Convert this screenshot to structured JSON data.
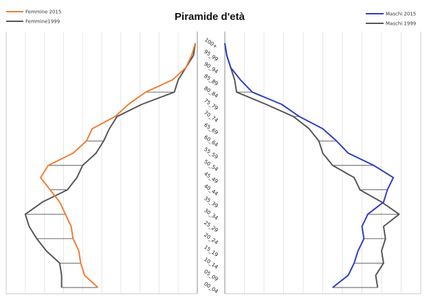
{
  "chart_data": {
    "type": "line",
    "title": "Piramide d'età",
    "age_groups": [
      "00_04",
      "05_09",
      "10_14",
      "15_19",
      "20_24",
      "25_29",
      "30_34",
      "35_39",
      "40_44",
      "45_49",
      "50_54",
      "55_59",
      "60_64",
      "65_69",
      "70_74",
      "75_79",
      "80_84",
      "85_89",
      "90_94",
      "95_99",
      "100+"
    ],
    "x_range": [
      0,
      10
    ],
    "gridlines": true,
    "panels": [
      {
        "side": "left",
        "name": "Femmine",
        "series": [
          {
            "name": "Femmine 2015",
            "color": "#f07d32",
            "values": [
              5.2,
              5.9,
              6.1,
              6.2,
              6.5,
              6.6,
              6.9,
              7.2,
              7.7,
              8.2,
              7.8,
              6.5,
              5.8,
              5.5,
              4.3,
              3.6,
              2.7,
              1.3,
              0.6,
              0.3,
              0.1
            ]
          },
          {
            "name": "Femmine1999",
            "color": "#555555",
            "values": [
              7.1,
              7.1,
              7.2,
              7.9,
              8.4,
              8.8,
              9.0,
              8.1,
              6.8,
              6.3,
              6.0,
              5.3,
              4.9,
              4.6,
              4.2,
              2.9,
              1.2,
              1.0,
              0.6,
              0.2,
              0.1
            ]
          }
        ]
      },
      {
        "side": "right",
        "name": "Maschi",
        "series": [
          {
            "name": "Maschi 2015",
            "color": "#2b3ec6",
            "values": [
              5.5,
              6.3,
              6.6,
              6.8,
              7.1,
              7.0,
              7.3,
              8.1,
              8.3,
              8.6,
              7.6,
              6.3,
              5.7,
              5.0,
              3.8,
              2.9,
              1.4,
              0.8,
              0.3,
              0.1,
              0.0
            ]
          },
          {
            "name": "Maschi 1999",
            "color": "#555555",
            "values": [
              7.8,
              7.7,
              8.1,
              8.0,
              8.2,
              8.1,
              8.9,
              8.0,
              6.9,
              6.6,
              5.5,
              5.0,
              4.8,
              4.3,
              3.5,
              2.1,
              0.6,
              0.5,
              0.3,
              0.1,
              0.0
            ]
          }
        ]
      }
    ],
    "legend": {
      "left": [
        {
          "label": "Femmine 2015",
          "color": "#f07d32"
        },
        {
          "label": "Femmine1999",
          "color": "#555555"
        }
      ],
      "right": [
        {
          "label": "Maschi 2015",
          "color": "#2b3ec6"
        },
        {
          "label": "Maschi 1999",
          "color": "#555555"
        }
      ]
    }
  }
}
